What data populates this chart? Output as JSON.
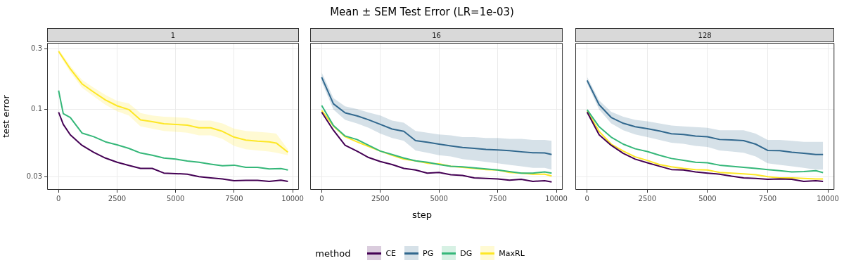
{
  "chart_data": [
    {
      "type": "line",
      "title": "1",
      "ylabel": "test error",
      "legend_title": "method",
      "legend": "bottom",
      "log": "y",
      "grid": true,
      "xlim": [
        -490,
        10270
      ],
      "xticks": [
        0,
        2500,
        5000,
        7500,
        10000
      ],
      "ylim": [
        0.0236,
        0.332
      ],
      "yticks": [
        0.03,
        0.1,
        0.3
      ],
      "series": [
        {
          "name": "CE",
          "color": "#440154",
          "x": [
            0,
            200,
            500,
            1000,
            1500,
            2000,
            2500,
            3000,
            3500,
            4000,
            4500,
            5000,
            5500,
            6000,
            6500,
            7000,
            7500,
            8000,
            8500,
            9000,
            9500,
            9800
          ],
          "values": [
            0.0955,
            0.0766,
            0.0635,
            0.0526,
            0.0464,
            0.0418,
            0.0388,
            0.0366,
            0.0347,
            0.0347,
            0.0319,
            0.0316,
            0.0313,
            0.0299,
            0.0293,
            0.0287,
            0.0278,
            0.028,
            0.028,
            0.0275,
            0.0281,
            0.0275
          ]
        },
        {
          "name": "DG",
          "color": "#35b779",
          "x": [
            0,
            200,
            500,
            1000,
            1500,
            2000,
            2500,
            3000,
            3500,
            4000,
            4500,
            5000,
            5500,
            6000,
            6500,
            7000,
            7500,
            8000,
            8500,
            9000,
            9500,
            9800
          ],
          "values": [
            0.141,
            0.093,
            0.0868,
            0.0656,
            0.0614,
            0.056,
            0.053,
            0.0498,
            0.0458,
            0.044,
            0.0418,
            0.041,
            0.0396,
            0.0388,
            0.0375,
            0.0364,
            0.0368,
            0.0354,
            0.0354,
            0.0344,
            0.0346,
            0.0337
          ]
        },
        {
          "name": "MaxRL",
          "color": "#fde725",
          "x": [
            0,
            500,
            1000,
            1500,
            2000,
            2500,
            3000,
            3500,
            4000,
            4500,
            5000,
            5500,
            6000,
            6500,
            7000,
            7500,
            8000,
            8500,
            9000,
            9300,
            9800
          ],
          "values": [
            0.285,
            0.208,
            0.159,
            0.137,
            0.119,
            0.107,
            0.1,
            0.083,
            0.0805,
            0.0775,
            0.0766,
            0.0756,
            0.072,
            0.072,
            0.0676,
            0.0609,
            0.0577,
            0.0567,
            0.056,
            0.0548,
            0.0464
          ],
          "lower": [
            0.275,
            0.196,
            0.148,
            0.127,
            0.109,
            0.097,
            0.09,
            0.074,
            0.071,
            0.068,
            0.067,
            0.066,
            0.063,
            0.063,
            0.059,
            0.052,
            0.049,
            0.048,
            0.047,
            0.046,
            0.044
          ],
          "upper": [
            0.295,
            0.22,
            0.171,
            0.148,
            0.13,
            0.117,
            0.112,
            0.094,
            0.09,
            0.088,
            0.087,
            0.086,
            0.082,
            0.082,
            0.078,
            0.071,
            0.068,
            0.067,
            0.066,
            0.065,
            0.049
          ]
        }
      ]
    },
    {
      "type": "line",
      "title": "16",
      "subtitle": "Mean ± SEM Test Error (LR=1e-03)",
      "xlabel": "step",
      "log": "y",
      "grid": true,
      "tick_labels": "x",
      "xlim": [
        -490,
        10270
      ],
      "xticks": [
        0,
        2500,
        5000,
        7500,
        10000
      ],
      "ylim": [
        0.0236,
        0.332
      ],
      "yticks": [
        0.03,
        0.1,
        0.3
      ],
      "x": [
        0,
        500,
        1000,
        1500,
        2000,
        2500,
        3000,
        3500,
        4000,
        4500,
        5000,
        5500,
        6000,
        6500,
        7000,
        7500,
        8000,
        8500,
        9000,
        9500,
        9800
      ],
      "series": [
        {
          "name": "CE",
          "color": "#440154",
          "values": [
            0.0955,
            0.069,
            0.0526,
            0.0474,
            0.0422,
            0.0393,
            0.0372,
            0.0347,
            0.0337,
            0.0319,
            0.0323,
            0.031,
            0.0306,
            0.0293,
            0.029,
            0.0287,
            0.0281,
            0.0285,
            0.0275,
            0.0278,
            0.0272
          ]
        },
        {
          "name": "PG",
          "color": "#31688e",
          "values": [
            0.179,
            0.111,
            0.0943,
            0.0894,
            0.0832,
            0.0766,
            0.0705,
            0.0676,
            0.0572,
            0.0556,
            0.0537,
            0.0521,
            0.0505,
            0.0498,
            0.0488,
            0.0484,
            0.0478,
            0.0468,
            0.046,
            0.0458,
            0.0446
          ],
          "lower": [
            0.165,
            0.1,
            0.083,
            0.078,
            0.072,
            0.065,
            0.06,
            0.057,
            0.048,
            0.046,
            0.044,
            0.043,
            0.041,
            0.04,
            0.039,
            0.038,
            0.037,
            0.036,
            0.035,
            0.035,
            0.034
          ],
          "upper": [
            0.195,
            0.123,
            0.106,
            0.101,
            0.095,
            0.09,
            0.082,
            0.079,
            0.068,
            0.066,
            0.064,
            0.063,
            0.061,
            0.061,
            0.06,
            0.06,
            0.059,
            0.059,
            0.058,
            0.058,
            0.057
          ]
        },
        {
          "name": "DG",
          "color": "#35b779",
          "values": [
            0.1078,
            0.075,
            0.0622,
            0.0584,
            0.0526,
            0.0474,
            0.0446,
            0.0418,
            0.0398,
            0.0388,
            0.0372,
            0.0361,
            0.0357,
            0.035,
            0.0344,
            0.0337,
            0.0328,
            0.0319,
            0.0319,
            0.0326,
            0.0319
          ]
        },
        {
          "name": "MaxRL",
          "color": "#fde725",
          "values": [
            0.0983,
            0.0744,
            0.0614,
            0.056,
            0.0515,
            0.0474,
            0.044,
            0.041,
            0.0398,
            0.0381,
            0.0377,
            0.0361,
            0.0354,
            0.0347,
            0.034,
            0.0337,
            0.0323,
            0.0319,
            0.0313,
            0.0313,
            0.0303
          ]
        }
      ]
    },
    {
      "type": "line",
      "title": "128",
      "log": "y",
      "grid": true,
      "tick_labels": "x",
      "xlim": [
        -490,
        10270
      ],
      "xticks": [
        0,
        2500,
        5000,
        7500,
        10000
      ],
      "ylim": [
        0.0236,
        0.332
      ],
      "yticks": [
        0.03,
        0.1,
        0.3
      ],
      "x": [
        0,
        500,
        1000,
        1500,
        2000,
        2500,
        3000,
        3500,
        4000,
        4500,
        5000,
        5500,
        6000,
        6500,
        7000,
        7500,
        8000,
        8500,
        9000,
        9500,
        9800
      ],
      "series": [
        {
          "name": "CE",
          "color": "#440154",
          "values": [
            0.0955,
            0.0635,
            0.0526,
            0.0455,
            0.041,
            0.0384,
            0.0361,
            0.034,
            0.0337,
            0.0326,
            0.0319,
            0.0313,
            0.0302,
            0.0293,
            0.029,
            0.0285,
            0.0287,
            0.0285,
            0.0275,
            0.0278,
            0.0275
          ]
        },
        {
          "name": "PG",
          "color": "#31688e",
          "values": [
            0.169,
            0.109,
            0.0868,
            0.0782,
            0.0734,
            0.071,
            0.0681,
            0.0648,
            0.064,
            0.0622,
            0.0614,
            0.0584,
            0.0579,
            0.0572,
            0.0537,
            0.048,
            0.0478,
            0.0464,
            0.0455,
            0.0446,
            0.0446
          ],
          "lower": [
            0.16,
            0.1,
            0.078,
            0.069,
            0.064,
            0.061,
            0.058,
            0.055,
            0.054,
            0.052,
            0.051,
            0.048,
            0.047,
            0.046,
            0.043,
            0.038,
            0.037,
            0.036,
            0.035,
            0.034,
            0.034
          ],
          "upper": [
            0.18,
            0.118,
            0.096,
            0.088,
            0.083,
            0.081,
            0.078,
            0.075,
            0.074,
            0.073,
            0.072,
            0.069,
            0.069,
            0.069,
            0.065,
            0.058,
            0.058,
            0.057,
            0.056,
            0.056,
            0.056
          ]
        },
        {
          "name": "DG",
          "color": "#35b779",
          "values": [
            0.0996,
            0.0734,
            0.0609,
            0.0537,
            0.0494,
            0.047,
            0.044,
            0.0415,
            0.0401,
            0.0388,
            0.0384,
            0.0368,
            0.0361,
            0.0354,
            0.0347,
            0.034,
            0.0333,
            0.0326,
            0.0328,
            0.0333,
            0.0322
          ]
        },
        {
          "name": "MaxRL",
          "color": "#fde725",
          "values": [
            0.0971,
            0.0676,
            0.0537,
            0.0474,
            0.0427,
            0.0401,
            0.0372,
            0.0357,
            0.0347,
            0.034,
            0.0337,
            0.0323,
            0.0319,
            0.0315,
            0.031,
            0.0299,
            0.0293,
            0.0293,
            0.029,
            0.0287,
            0.0287
          ]
        }
      ]
    }
  ]
}
